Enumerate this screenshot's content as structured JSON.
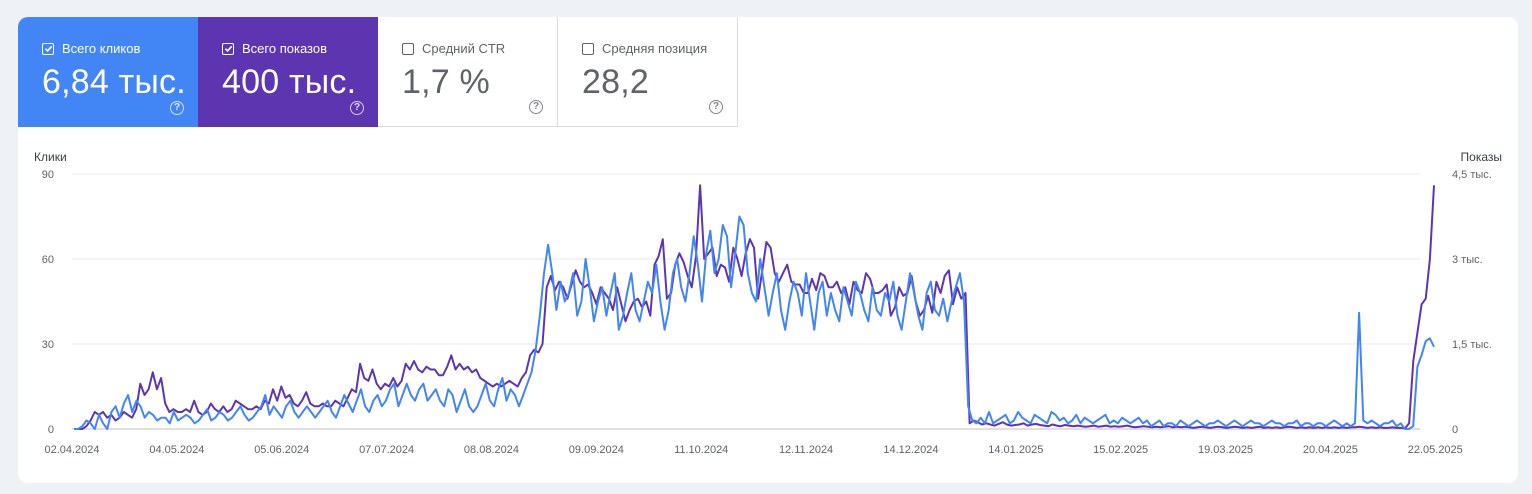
{
  "metrics": [
    {
      "label": "Всего кликов",
      "value": "6,84 тыс.",
      "checked": true,
      "color": "#4285f4"
    },
    {
      "label": "Всего показов",
      "value": "400 тыс.",
      "checked": true,
      "color": "#5e35b1"
    },
    {
      "label": "Средний CTR",
      "value": "1,7 %",
      "checked": false
    },
    {
      "label": "Средняя позиция",
      "value": "28,2",
      "checked": false
    }
  ],
  "icons": {
    "help": "help-circle-icon",
    "check": "checkmark-icon"
  },
  "help_glyph": "?",
  "chart_data": {
    "type": "line",
    "left_axis": {
      "title": "Клики",
      "ticks": [
        "90",
        "60",
        "30",
        "0"
      ],
      "range": [
        0,
        90
      ]
    },
    "right_axis": {
      "title": "Показы",
      "ticks": [
        "4,5 тыс.",
        "3 тыс.",
        "1,5 тыс.",
        "0"
      ],
      "range": [
        0,
        4500
      ]
    },
    "x_ticks": [
      "02.04.2024",
      "04.05.2024",
      "05.06.2024",
      "07.07.2024",
      "08.08.2024",
      "09.09.2024",
      "11.10.2024",
      "12.11.2024",
      "14.12.2024",
      "14.01.2025",
      "15.02.2025",
      "19.03.2025",
      "20.04.2025",
      "22.05.2025"
    ],
    "grid": true,
    "series": [
      {
        "name": "Клики",
        "axis": "left",
        "color": "#4285f4",
        "values": [
          0,
          0,
          1,
          3,
          2,
          0,
          5,
          2,
          0,
          6,
          8,
          4,
          9,
          12,
          6,
          10,
          8,
          4,
          6,
          5,
          3,
          4,
          4,
          2,
          6,
          3,
          4,
          5,
          4,
          2,
          3,
          5,
          7,
          3,
          4,
          6,
          5,
          3,
          4,
          6,
          8,
          5,
          3,
          4,
          6,
          8,
          12,
          5,
          8,
          6,
          4,
          8,
          10,
          6,
          4,
          6,
          8,
          6,
          4,
          6,
          8,
          10,
          6,
          4,
          8,
          12,
          9,
          6,
          10,
          14,
          8,
          6,
          10,
          12,
          8,
          10,
          14,
          16,
          8,
          12,
          16,
          12,
          10,
          14,
          16,
          10,
          12,
          14,
          10,
          8,
          14,
          12,
          6,
          10,
          14,
          8,
          6,
          8,
          12,
          16,
          10,
          8,
          14,
          18,
          10,
          14,
          12,
          8,
          12,
          16,
          20,
          28,
          40,
          55,
          65,
          55,
          42,
          52,
          45,
          48,
          55,
          40,
          45,
          60,
          50,
          38,
          45,
          50,
          40,
          48,
          55,
          35,
          40,
          48,
          55,
          42,
          38,
          45,
          52,
          48,
          58,
          45,
          35,
          42,
          55,
          60,
          50,
          45,
          55,
          68,
          58,
          45,
          62,
          70,
          55,
          60,
          72,
          68,
          50,
          62,
          75,
          72,
          55,
          48,
          45,
          60,
          50,
          40,
          48,
          55,
          42,
          35,
          45,
          52,
          48,
          40,
          55,
          45,
          35,
          48,
          52,
          40,
          48,
          42,
          38,
          50,
          45,
          40,
          52,
          48,
          42,
          38,
          50,
          42,
          40,
          48,
          45,
          52,
          40,
          35,
          45,
          55,
          48,
          40,
          35,
          48,
          52,
          42,
          40,
          46,
          38,
          45,
          50,
          55,
          45,
          8,
          3,
          2,
          4,
          2,
          6,
          2,
          3,
          4,
          5,
          2,
          3,
          6,
          4,
          3,
          2,
          5,
          4,
          3,
          2,
          6,
          5,
          3,
          4,
          2,
          3,
          5,
          2,
          4,
          3,
          2,
          3,
          4,
          5,
          2,
          3,
          2,
          4,
          3,
          2,
          3,
          4,
          2,
          3,
          1,
          2,
          3,
          1,
          2,
          2,
          1,
          3,
          2,
          1,
          2,
          3,
          2,
          1,
          2,
          2,
          3,
          2,
          1,
          2,
          3,
          2,
          1,
          2,
          3,
          2,
          2,
          1,
          2,
          3,
          2,
          2,
          1,
          2,
          2,
          3,
          1,
          2,
          2,
          1,
          2,
          2,
          1,
          2,
          3,
          2,
          1,
          2,
          1,
          2,
          41,
          3,
          2,
          3,
          2,
          1,
          2,
          2,
          3,
          1,
          2,
          0,
          0,
          1,
          22,
          26,
          31,
          32,
          29
        ]
      },
      {
        "name": "Показы",
        "axis": "right",
        "color": "#5e35b1",
        "values": [
          0,
          0,
          0,
          50,
          150,
          300,
          250,
          300,
          200,
          250,
          150,
          200,
          300,
          250,
          200,
          350,
          800,
          600,
          700,
          1000,
          700,
          900,
          450,
          300,
          350,
          300,
          300,
          350,
          300,
          500,
          300,
          250,
          300,
          450,
          350,
          300,
          400,
          300,
          350,
          500,
          450,
          400,
          350,
          350,
          400,
          350,
          500,
          450,
          700,
          500,
          750,
          550,
          600,
          450,
          400,
          500,
          650,
          450,
          400,
          400,
          450,
          400,
          400,
          500,
          450,
          400,
          550,
          700,
          650,
          1150,
          900,
          850,
          1050,
          800,
          700,
          800,
          750,
          900,
          750,
          850,
          1150,
          1050,
          1200,
          1050,
          1000,
          1100,
          1050,
          1050,
          950,
          950,
          1100,
          1300,
          1050,
          1150,
          1050,
          1100,
          1000,
          1050,
          900,
          850,
          800,
          750,
          800,
          750,
          800,
          850,
          800,
          750,
          900,
          1000,
          1300,
          1400,
          1350,
          1500,
          2500,
          2700,
          2450,
          2600,
          2500,
          2300,
          2550,
          2800,
          2600,
          2500,
          2550,
          2400,
          2200,
          2500,
          2400,
          2300,
          2100,
          2500,
          2200,
          1900,
          2100,
          2250,
          2300,
          2150,
          2250,
          2000,
          2900,
          3050,
          3350,
          2300,
          2400,
          2900,
          3100,
          2950,
          2700,
          2500,
          3050,
          4300,
          3000,
          3100,
          3200,
          2700,
          2900,
          2850,
          2600,
          3200,
          3000,
          2700,
          3100,
          3350,
          3200,
          2300,
          2800,
          3300,
          3200,
          2750,
          2600,
          2750,
          2900,
          2600,
          2550,
          2550,
          2400,
          2400,
          2650,
          2450,
          2750,
          2700,
          2500,
          2500,
          2600,
          2400,
          2500,
          2200,
          2600,
          2450,
          2400,
          2750,
          2650,
          2400,
          2400,
          2450,
          2550,
          2000,
          2150,
          2500,
          2350,
          2400,
          2700,
          2250,
          2000,
          2100,
          2350,
          2050,
          2600,
          2400,
          2700,
          2800,
          2200,
          2500,
          2300,
          2400,
          100,
          150,
          120,
          80,
          100,
          80,
          60,
          90,
          120,
          80,
          60,
          70,
          80,
          100,
          60,
          80,
          90,
          70,
          60,
          50,
          80,
          60,
          50,
          70,
          60,
          50,
          60,
          50,
          40,
          50,
          60,
          40,
          50,
          60,
          40,
          50,
          40,
          50,
          60,
          40,
          30,
          40,
          50,
          40,
          30,
          40,
          30,
          40,
          50,
          30,
          40,
          30,
          40,
          30,
          20,
          30,
          40,
          30,
          20,
          30,
          40,
          30,
          20,
          30,
          40,
          30,
          20,
          30,
          20,
          30,
          40,
          20,
          30,
          20,
          30,
          20,
          30,
          40,
          30,
          20,
          30,
          20,
          30,
          20,
          30,
          20,
          30,
          20,
          30,
          20,
          30,
          20,
          30,
          30,
          40,
          30,
          20,
          30,
          20,
          30,
          20,
          20,
          30,
          20,
          20,
          10,
          100,
          1200,
          1700,
          2200,
          2300,
          3000,
          4300
        ]
      }
    ]
  }
}
